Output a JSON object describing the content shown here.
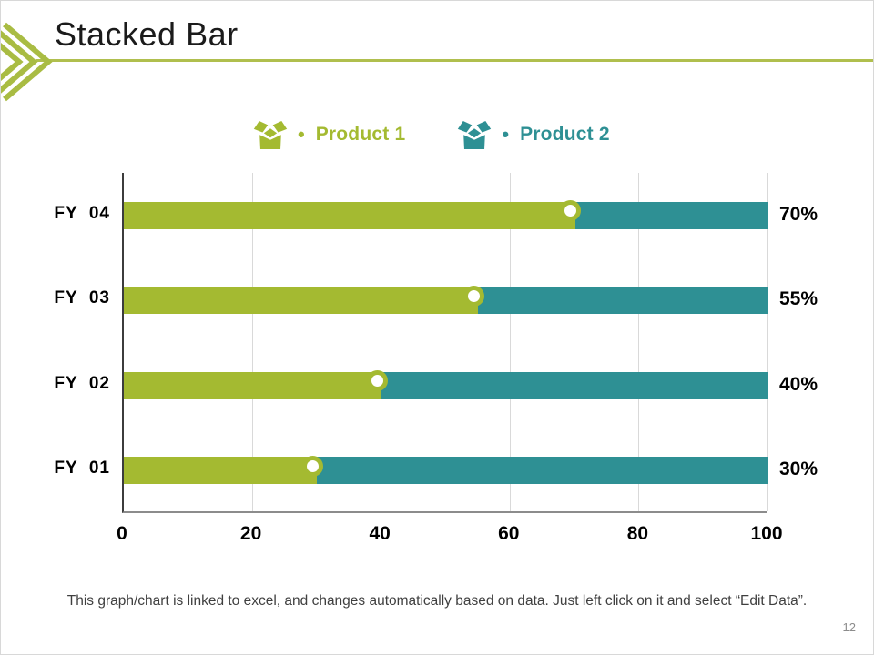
{
  "slide": {
    "title": "Stacked Bar",
    "page_number": "12",
    "footer_note": "This graph/chart is linked to excel, and changes automatically based on data. Just left click on it and select “Edit Data”."
  },
  "colors": {
    "product1_green": "#a4ba31",
    "product2_teal": "#2e9094",
    "divider_olive": "#b0bf4e",
    "chevron_olive": "#a9bc43",
    "gridline_gray": "#d9d9d9",
    "marker_fill": "#ffffff"
  },
  "legend": {
    "items": [
      {
        "icon": "open-box-icon",
        "bullet": "•",
        "label": "Product 1",
        "color": "#a4ba31"
      },
      {
        "icon": "open-box-icon",
        "bullet": "•",
        "label": "Product 2",
        "color": "#2e9094"
      }
    ]
  },
  "chart_data": {
    "type": "bar",
    "orientation": "horizontal",
    "stacked": true,
    "title": "Stacked Bar",
    "categories": [
      "FY  04",
      "FY  03",
      "FY  02",
      "FY  01"
    ],
    "series": [
      {
        "name": "Product 1",
        "color": "#a4ba31",
        "values": [
          70,
          55,
          40,
          30
        ]
      },
      {
        "name": "Product 2",
        "color": "#2e9094",
        "values": [
          30,
          45,
          60,
          70
        ]
      }
    ],
    "data_labels": [
      "70%",
      "55%",
      "40%",
      "30%"
    ],
    "x_ticks": [
      "0",
      "20",
      "40",
      "60",
      "80",
      "100"
    ],
    "xlim": [
      0,
      100
    ],
    "grid": true,
    "legend_position": "top",
    "marker": {
      "shape": "circle",
      "fill": "#ffffff",
      "ring_color": "#a4ba31"
    }
  }
}
